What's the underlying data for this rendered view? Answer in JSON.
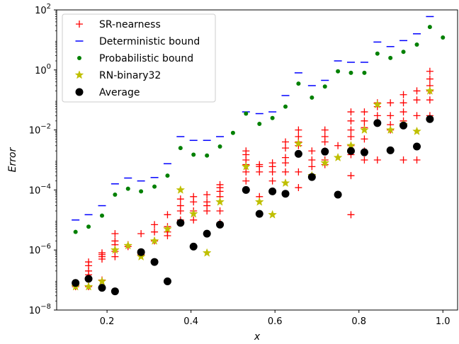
{
  "chart_data": {
    "type": "scatter",
    "title": "",
    "xlabel": "x",
    "ylabel": "Error",
    "xlim": [
      0.08,
      1.035
    ],
    "ylim_exp": [
      -8,
      2
    ],
    "yscale": "log",
    "x_ticks": [
      "0.2",
      "0.4",
      "0.6",
      "0.8",
      "1.0"
    ],
    "x_tick_values": [
      0.2,
      0.4,
      0.6,
      0.8,
      1.0
    ],
    "y_tick_base": "10",
    "y_tick_exponents": [
      "−8",
      "−6",
      "−4",
      "−2",
      "0",
      "2"
    ],
    "y_tick_values_exp": [
      -8,
      -6,
      -4,
      -2,
      0,
      2
    ],
    "legend_position": "upper-left",
    "series": [
      {
        "name": "SR-nearness",
        "marker": "plus",
        "color": "#ff0000",
        "x": [
          0.125,
          0.125,
          0.156,
          0.156,
          0.156,
          0.156,
          0.156,
          0.188,
          0.188,
          0.188,
          0.188,
          0.188,
          0.219,
          0.219,
          0.219,
          0.219,
          0.219,
          0.25,
          0.25,
          0.281,
          0.281,
          0.313,
          0.313,
          0.313,
          0.344,
          0.344,
          0.344,
          0.344,
          0.375,
          0.375,
          0.375,
          0.375,
          0.406,
          0.406,
          0.406,
          0.406,
          0.438,
          0.438,
          0.438,
          0.438,
          0.469,
          0.469,
          0.469,
          0.469,
          0.469,
          0.469,
          0.531,
          0.531,
          0.531,
          0.531,
          0.531,
          0.531,
          0.563,
          0.563,
          0.563,
          0.563,
          0.594,
          0.594,
          0.594,
          0.594,
          0.625,
          0.625,
          0.625,
          0.625,
          0.625,
          0.656,
          0.656,
          0.656,
          0.656,
          0.656,
          0.656,
          0.688,
          0.688,
          0.688,
          0.688,
          0.719,
          0.719,
          0.719,
          0.719,
          0.719,
          0.719,
          0.75,
          0.781,
          0.781,
          0.781,
          0.781,
          0.781,
          0.781,
          0.781,
          0.781,
          0.813,
          0.813,
          0.813,
          0.813,
          0.813,
          0.813,
          0.844,
          0.844,
          0.844,
          0.844,
          0.875,
          0.875,
          0.875,
          0.875,
          0.906,
          0.906,
          0.906,
          0.906,
          0.906,
          0.938,
          0.938,
          0.938,
          0.938,
          0.969,
          0.969,
          0.969,
          0.969,
          0.969,
          0.969
        ],
        "y": [
          7e-08,
          6e-08,
          4e-07,
          3e-07,
          2e-07,
          1.5e-07,
          6e-08,
          8e-07,
          7e-07,
          6e-07,
          5e-07,
          1e-07,
          3.5e-06,
          2e-06,
          1.5e-06,
          9e-07,
          6e-07,
          1.5e-06,
          1.3e-06,
          3.5e-06,
          7e-07,
          7e-06,
          4e-06,
          2e-06,
          1.5e-05,
          6e-06,
          4e-06,
          3e-06,
          5e-05,
          3e-05,
          2e-05,
          1e-05,
          6e-05,
          4e-05,
          2e-05,
          1e-05,
          7e-05,
          4e-05,
          3e-05,
          2e-05,
          0.00015,
          0.00012,
          9e-05,
          6e-05,
          2e-05,
          8e-06,
          0.002,
          0.0015,
          0.001,
          0.0007,
          0.0004,
          0.0002,
          0.0007,
          0.0006,
          0.0004,
          6e-05,
          0.0008,
          0.0006,
          0.0004,
          0.0002,
          0.004,
          0.0025,
          0.0012,
          0.0008,
          0.0004,
          0.01,
          0.006,
          0.004,
          0.003,
          0.0004,
          0.00012,
          0.002,
          0.001,
          0.0006,
          0.0003,
          0.01,
          0.006,
          0.004,
          0.002,
          0.001,
          0.0007,
          0.003,
          0.04,
          0.02,
          0.01,
          0.006,
          0.003,
          0.0015,
          0.0003,
          1.5e-05,
          0.04,
          0.02,
          0.012,
          0.005,
          0.002,
          0.001,
          0.08,
          0.06,
          0.03,
          0.001,
          0.08,
          0.03,
          0.015,
          0.01,
          0.15,
          0.08,
          0.04,
          0.02,
          0.001,
          0.2,
          0.1,
          0.03,
          0.001,
          0.9,
          0.5,
          0.3,
          0.2,
          0.1,
          0.03
        ]
      },
      {
        "name": "Deterministic bound",
        "marker": "hline",
        "color": "#0000ff",
        "x": [
          0.125,
          0.156,
          0.188,
          0.219,
          0.25,
          0.281,
          0.313,
          0.344,
          0.375,
          0.406,
          0.438,
          0.469,
          0.531,
          0.563,
          0.594,
          0.625,
          0.656,
          0.688,
          0.719,
          0.75,
          0.781,
          0.813,
          0.844,
          0.875,
          0.906,
          0.938,
          0.969
        ],
        "y": [
          1e-05,
          1.5e-05,
          3e-05,
          0.00016,
          0.00025,
          0.0002,
          0.00026,
          0.00075,
          0.006,
          0.0045,
          0.0045,
          0.006,
          0.04,
          0.035,
          0.04,
          0.14,
          0.8,
          0.3,
          0.45,
          2.0,
          1.8,
          1.8,
          8.5,
          6.0,
          9.5,
          16.0,
          60.0
        ]
      },
      {
        "name": "Probabilistic bound",
        "marker": "dot",
        "color": "#008000",
        "x": [
          0.125,
          0.156,
          0.188,
          0.219,
          0.25,
          0.281,
          0.313,
          0.344,
          0.375,
          0.406,
          0.438,
          0.469,
          0.5,
          0.531,
          0.563,
          0.594,
          0.625,
          0.656,
          0.688,
          0.719,
          0.75,
          0.781,
          0.813,
          0.844,
          0.875,
          0.906,
          0.938,
          0.969,
          1.0
        ],
        "y": [
          4e-06,
          6e-06,
          1.4e-05,
          7e-05,
          0.00011,
          9e-05,
          0.00013,
          0.0003,
          0.0025,
          0.0015,
          0.0014,
          0.0028,
          0.008,
          0.035,
          0.016,
          0.025,
          0.06,
          0.35,
          0.12,
          0.28,
          0.9,
          0.8,
          0.8,
          3.5,
          2.5,
          4.0,
          7.0,
          27.0,
          12.0
        ]
      },
      {
        "name": "RN-binary32",
        "marker": "star",
        "color": "#bfbf00",
        "x": [
          0.125,
          0.156,
          0.188,
          0.219,
          0.25,
          0.281,
          0.313,
          0.344,
          0.375,
          0.406,
          0.438,
          0.469,
          0.531,
          0.563,
          0.594,
          0.625,
          0.656,
          0.688,
          0.719,
          0.75,
          0.781,
          0.813,
          0.844,
          0.875,
          0.906,
          0.938,
          0.969
        ],
        "y": [
          6e-08,
          6e-08,
          9e-08,
          1e-06,
          1.4e-06,
          6e-07,
          2e-06,
          5e-06,
          0.0001,
          1.6e-05,
          8e-07,
          4e-05,
          0.0006,
          4e-05,
          1.5e-05,
          0.00017,
          0.0035,
          0.0003,
          0.0008,
          0.0012,
          0.003,
          0.01,
          0.07,
          0.01,
          0.015,
          0.009,
          0.2
        ]
      },
      {
        "name": "Average",
        "marker": "circle",
        "color": "#000000",
        "x": [
          0.125,
          0.156,
          0.188,
          0.219,
          0.281,
          0.313,
          0.344,
          0.375,
          0.406,
          0.438,
          0.469,
          0.531,
          0.563,
          0.594,
          0.625,
          0.656,
          0.688,
          0.719,
          0.75,
          0.781,
          0.813,
          0.844,
          0.875,
          0.906,
          0.938,
          0.969
        ],
        "y": [
          8e-08,
          1.1e-07,
          5.5e-08,
          4.2e-08,
          8.5e-07,
          4e-07,
          9e-08,
          8e-06,
          1.3e-06,
          3.5e-06,
          7e-06,
          0.0001,
          1.6e-05,
          9e-05,
          7.5e-05,
          0.0016,
          0.00027,
          0.0019,
          7e-05,
          0.002,
          0.0018,
          0.017,
          0.0021,
          0.014,
          0.0028,
          0.023
        ]
      }
    ]
  }
}
